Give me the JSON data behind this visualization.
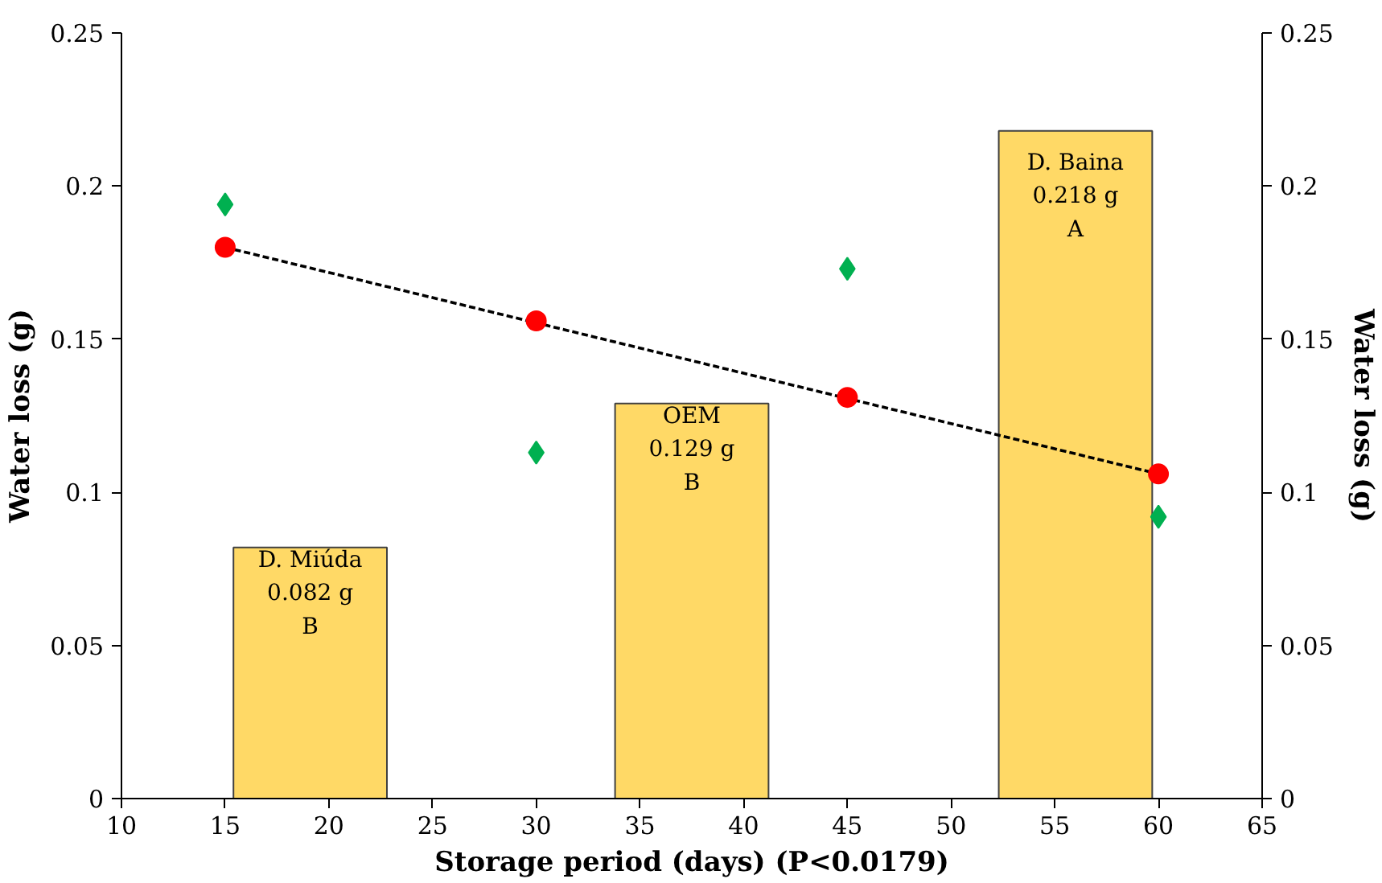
{
  "chart_data": {
    "type": "bar",
    "xlabel": "Storage period (days) (P<0.0179)",
    "ylabel": "Water loss (g)",
    "y2label": "Water loss (g)",
    "xlim": [
      10,
      65
    ],
    "xticks": [
      10,
      15,
      20,
      25,
      30,
      35,
      40,
      45,
      50,
      55,
      60,
      65
    ],
    "ylim": [
      0,
      0.25
    ],
    "yticks": [
      0,
      0.05,
      0.1,
      0.15,
      0.2,
      0.25
    ],
    "y2lim": [
      0,
      0.25
    ],
    "y2ticks": [
      0,
      0.05,
      0.1,
      0.15,
      0.2,
      0.25
    ],
    "grid": false,
    "series": [
      {
        "color": "#ffd966",
        "x": [
          19.1,
          37.5,
          56
        ],
        "values": [
          0.082,
          0.129,
          0.218
        ],
        "value_labels": [
          "D. Miúda\n0.082 g\nB",
          "OEM\n0.129 g\nB",
          "D. Baina\n0.218 g\nA"
        ]
      },
      {
        "type": "line",
        "color": "#000000",
        "x": [
          15,
          60
        ],
        "values": [
          0.18,
          0.106
        ],
        "marker": "none",
        "line_style": "dashed"
      },
      {
        "type": "scatter",
        "color": "#ff0000",
        "x": [
          15,
          30,
          45,
          60
        ],
        "values": [
          0.18,
          0.156,
          0.131,
          0.106
        ],
        "marker": "circle"
      },
      {
        "type": "scatter",
        "color": "#00b050",
        "x": [
          15,
          30,
          45,
          60
        ],
        "values": [
          0.194,
          0.113,
          0.173,
          0.092
        ],
        "marker": "diamond"
      }
    ]
  }
}
